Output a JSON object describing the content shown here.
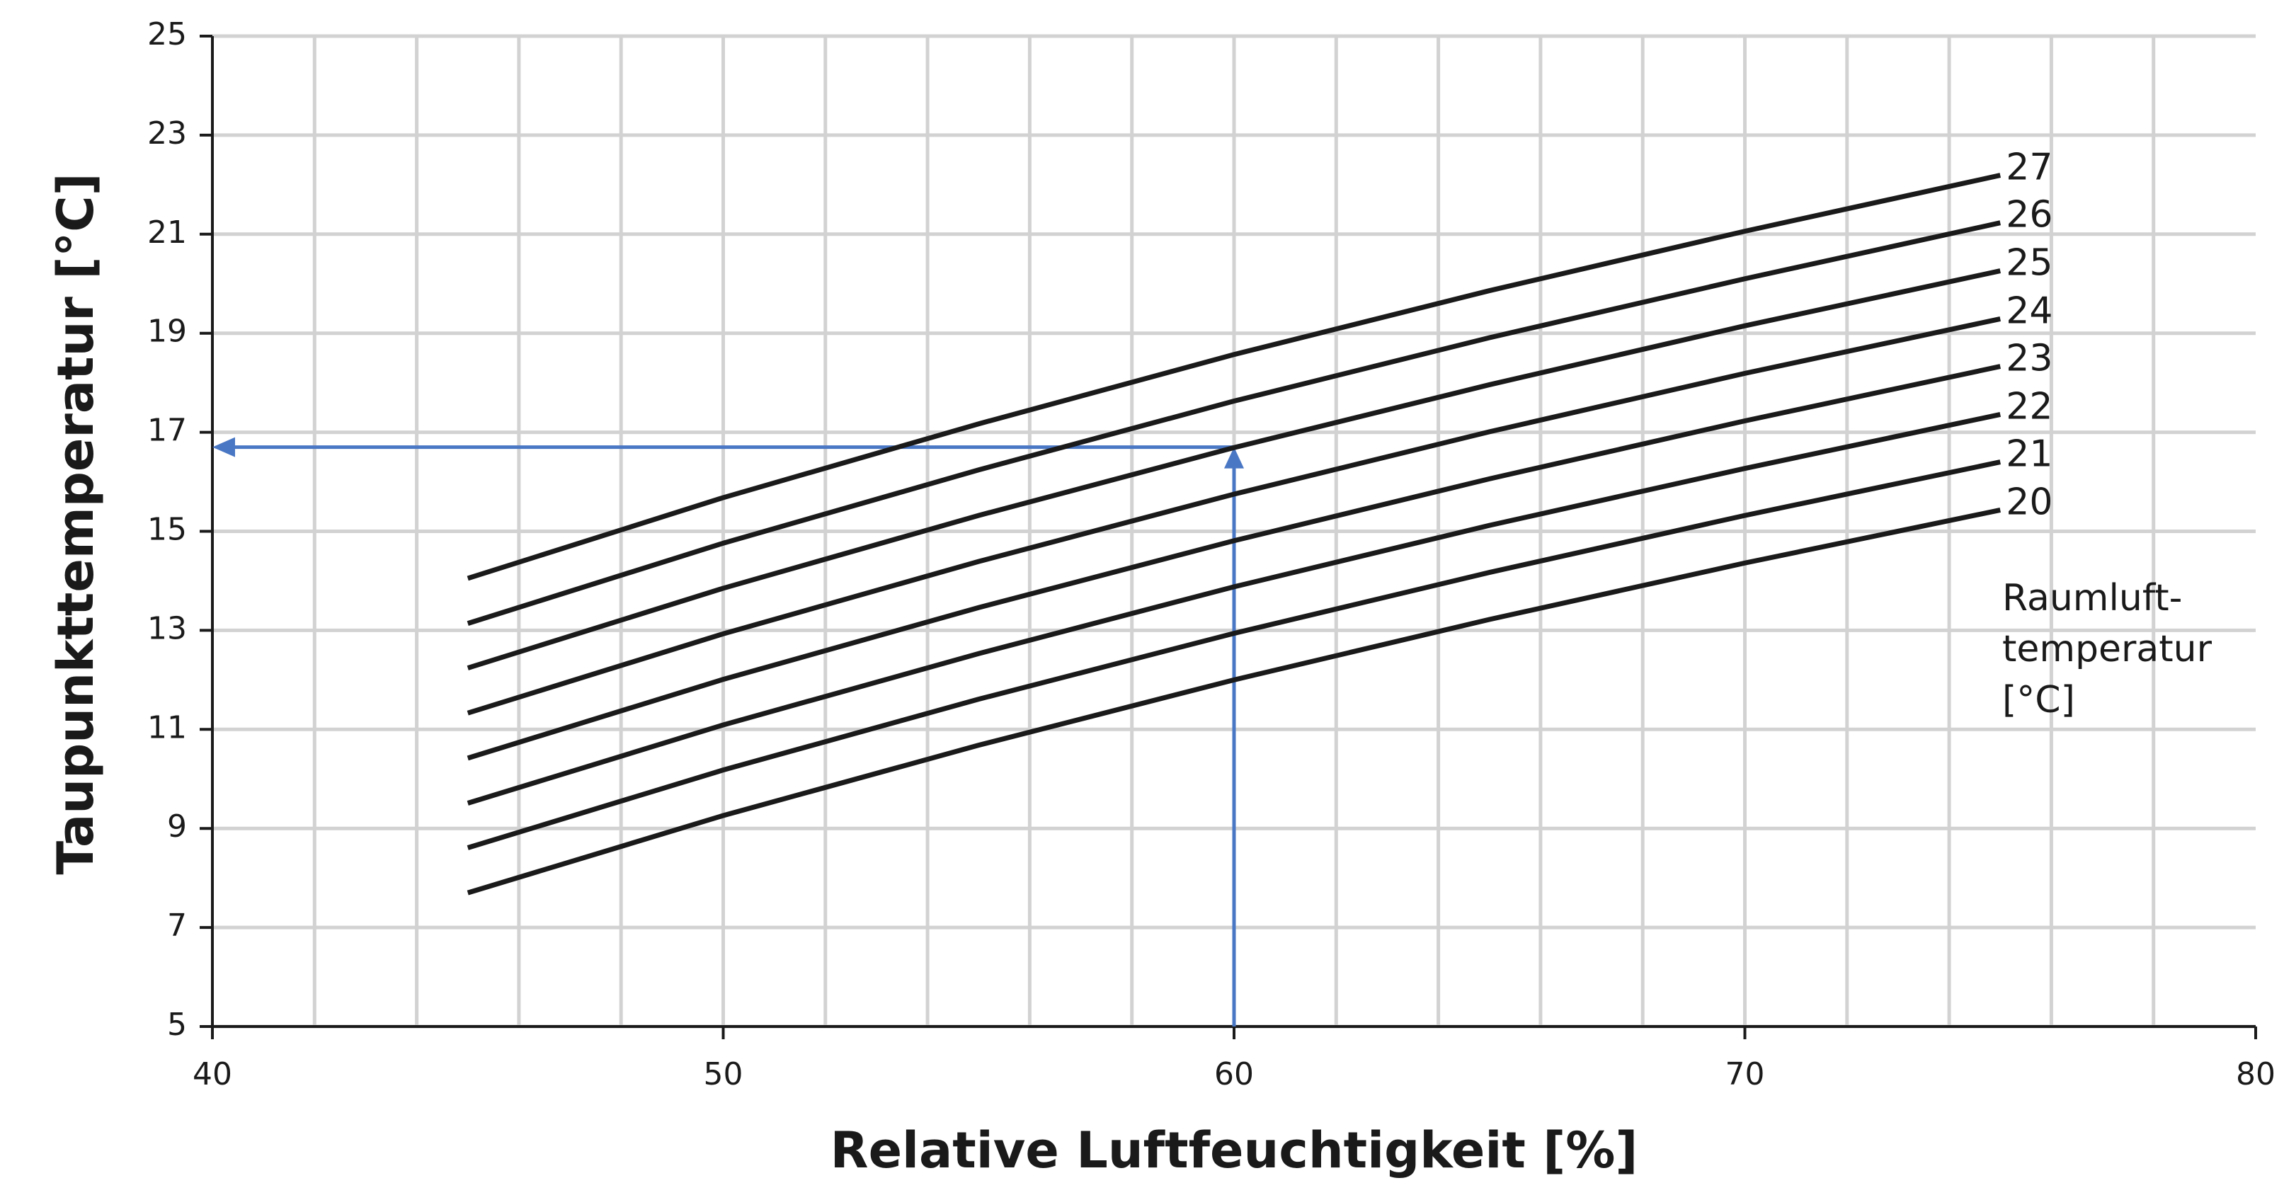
{
  "chart_data": {
    "type": "line",
    "xlabel": "Relative Luftfeuchtigkeit [%]",
    "ylabel": "Taupunkttemperatur [°C]",
    "legend_title": [
      "Raumluft-",
      "temperatur",
      "[°C]"
    ],
    "x": [
      45,
      50,
      55,
      60,
      65,
      70,
      75
    ],
    "series": [
      {
        "name": "20",
        "color": "#1a1a1a",
        "values": [
          7.7,
          9.26,
          10.68,
          12.0,
          13.22,
          14.36,
          15.43
        ]
      },
      {
        "name": "21",
        "color": "#1a1a1a",
        "values": [
          8.61,
          10.18,
          11.61,
          12.94,
          14.17,
          15.32,
          16.4
        ]
      },
      {
        "name": "22",
        "color": "#1a1a1a",
        "values": [
          9.51,
          11.09,
          12.53,
          13.88,
          15.12,
          16.27,
          17.36
        ]
      },
      {
        "name": "23",
        "color": "#1a1a1a",
        "values": [
          10.42,
          12.01,
          13.46,
          14.81,
          16.06,
          17.23,
          18.33
        ]
      },
      {
        "name": "24",
        "color": "#1a1a1a",
        "values": [
          11.33,
          12.93,
          14.39,
          15.75,
          17.01,
          18.19,
          19.29
        ]
      },
      {
        "name": "25",
        "color": "#1a1a1a",
        "values": [
          12.24,
          13.85,
          15.32,
          16.69,
          17.96,
          19.15,
          20.26
        ]
      },
      {
        "name": "26",
        "color": "#1a1a1a",
        "values": [
          13.14,
          14.76,
          16.24,
          17.63,
          18.91,
          20.1,
          21.23
        ]
      },
      {
        "name": "27",
        "color": "#1a1a1a",
        "values": [
          14.05,
          15.68,
          17.17,
          18.57,
          19.86,
          21.06,
          22.19
        ]
      }
    ],
    "reading": {
      "x": 60,
      "y": 16.7,
      "color": "#4a77c4"
    },
    "xlim": [
      40,
      80
    ],
    "xticks": [
      40,
      50,
      60,
      70,
      80
    ],
    "xgrid": [
      42,
      44,
      46,
      48,
      50,
      52,
      54,
      56,
      58,
      60,
      62,
      64,
      66,
      68,
      70,
      72,
      74,
      76,
      78
    ],
    "ylim": [
      5,
      25
    ],
    "yticks": [
      5,
      7,
      9,
      11,
      13,
      15,
      17,
      19,
      21,
      23,
      25
    ],
    "grid": true
  }
}
